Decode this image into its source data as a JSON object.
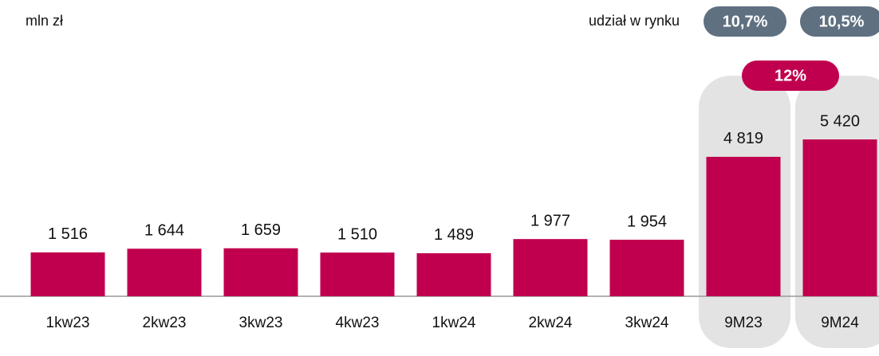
{
  "chart_data": {
    "type": "bar",
    "categories": [
      "1kw23",
      "2kw23",
      "3kw23",
      "4kw23",
      "1kw24",
      "2kw24",
      "3kw24",
      "9M23",
      "9M24"
    ],
    "values": [
      1516,
      1644,
      1659,
      1510,
      1489,
      1977,
      1954,
      4819,
      5420
    ],
    "value_labels": [
      "1 516",
      "1 644",
      "1 659",
      "1 510",
      "1 489",
      "1 977",
      "1 954",
      "4 819",
      "5 420"
    ],
    "color": "#c0004e",
    "ylim": [
      0,
      6000
    ],
    "annotations": {
      "unit": "mln zł",
      "market_share_title": "udział w rynku",
      "market_share": [
        "10,7%",
        "10,5%"
      ],
      "growth": "12%"
    }
  }
}
